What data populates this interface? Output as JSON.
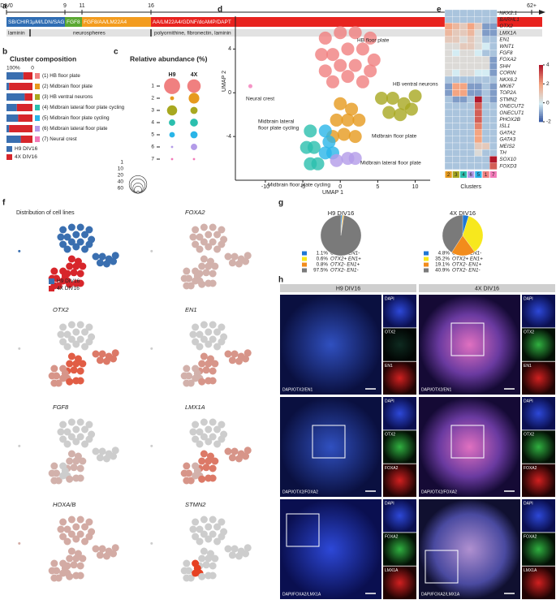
{
  "panel_letters": [
    "a",
    "b",
    "c",
    "d",
    "e",
    "f",
    "g",
    "h"
  ],
  "timeline": {
    "days": [
      "DIV0",
      "9",
      "11",
      "16",
      "62+"
    ],
    "media": [
      "SB/CHIR1μM/LDN/SAG",
      "FGF8",
      "FGF8/AA/LM22A4",
      "AA/LM22A4/GDNF/dcAMP/DAPT"
    ],
    "media_colors": [
      "#2f6db3",
      "#5aa832",
      "#f39c1f",
      "#e8231f"
    ],
    "substrates": [
      "laminin",
      "neurospheres",
      "polyornithine, fibronectin, laminin"
    ]
  },
  "composition": {
    "title": "Cluster composition",
    "axis_labels": [
      "100%",
      "0"
    ],
    "clusters": [
      "(1) HB floor plate",
      "(2) Midbrain floor plate",
      "(3) HB ventral neurons",
      "(4) Midbrain lateral floor plate cycling",
      "(5) Midbrain floor plate cycling",
      "(6) Midbrain lateral floor plate",
      "(7) Neural crest"
    ],
    "cluster_colors": [
      "#f08080",
      "#e69a1e",
      "#a8a820",
      "#2bbfae",
      "#29b5e8",
      "#b39be8",
      "#f27ab8"
    ],
    "series": [
      {
        "name": "H9 DIV16",
        "color": "#3a6fb0",
        "values": [
          65,
          10,
          70,
          40,
          45,
          10,
          55
        ]
      },
      {
        "name": "4X DIV16",
        "color": "#d7262b",
        "values": [
          35,
          90,
          30,
          60,
          55,
          90,
          45
        ]
      }
    ]
  },
  "abundance": {
    "title": "Relative abundance (%)",
    "columns": [
      "H9",
      "4X"
    ],
    "rows": [
      "1",
      "2",
      "3",
      "4",
      "5",
      "6",
      "7"
    ],
    "values": [
      [
        50,
        35
      ],
      [
        3,
        22
      ],
      [
        20,
        10
      ],
      [
        8,
        12
      ],
      [
        6,
        10
      ],
      [
        1,
        8
      ],
      [
        1,
        1
      ]
    ],
    "size_legend": [
      1,
      10,
      20,
      40,
      60
    ]
  },
  "umap": {
    "xlabel": "UMAP 1",
    "ylabel": "UMAP 2",
    "xlim": [
      -14,
      12
    ],
    "ylim": [
      -8,
      7
    ],
    "xticks": [
      -10,
      -5,
      0,
      5,
      10
    ],
    "yticks": [
      -4,
      0,
      4
    ],
    "labels": [
      "HB floor plate",
      "HB ventral neurons",
      "Neural crest",
      "Midbrain lateral",
      "floor plate cycling",
      "Midbrain floor plate",
      "Midbrain lateral floor plate",
      "Midbrain floor plate cycling"
    ],
    "clusters": [
      {
        "points": [
          [
            -2,
            5
          ],
          [
            0,
            5.5
          ],
          [
            2,
            5.5
          ],
          [
            4,
            5
          ],
          [
            -2.5,
            3.5
          ],
          [
            -1,
            3.5
          ],
          [
            1,
            4
          ],
          [
            3,
            4
          ],
          [
            4.5,
            3
          ],
          [
            -2,
            2
          ],
          [
            0,
            2.5
          ],
          [
            2,
            2.5
          ],
          [
            4,
            2
          ],
          [
            -1,
            1
          ],
          [
            1,
            1.5
          ],
          [
            3,
            1
          ]
        ]
      },
      {
        "points": [
          [
            0,
            -1
          ],
          [
            1.5,
            -1.5
          ],
          [
            -0.5,
            -2.5
          ],
          [
            1,
            -2.5
          ],
          [
            2.5,
            -2.5
          ],
          [
            -1,
            -4
          ],
          [
            0.5,
            -3.8
          ],
          [
            2,
            -4
          ]
        ]
      },
      {
        "points": [
          [
            5.5,
            -0.5
          ],
          [
            7,
            -0.5
          ],
          [
            8.5,
            -1
          ],
          [
            10,
            -0.3
          ],
          [
            6.5,
            -1.8
          ],
          [
            8,
            -2
          ],
          [
            9.5,
            -1.5
          ]
        ]
      },
      {
        "points": [
          [
            -4,
            -3.5
          ],
          [
            -4.5,
            -5
          ],
          [
            -3.5,
            -5
          ],
          [
            -4,
            -6.5
          ],
          [
            -3,
            -6.5
          ]
        ]
      },
      {
        "points": [
          [
            -2,
            -3.5
          ],
          [
            -1.5,
            -4.5
          ],
          [
            -1,
            -5.5
          ],
          [
            -2,
            -5.5
          ]
        ]
      },
      {
        "points": [
          [
            -0.5,
            -6.2
          ],
          [
            1,
            -6
          ],
          [
            2,
            -6
          ]
        ]
      },
      {
        "points": [
          [
            -12,
            0.6
          ]
        ]
      }
    ]
  },
  "heatmap": {
    "genes": [
      "NKX2.1",
      "BARHL1",
      "OTX2",
      "LMX1A",
      "EN1",
      "WNT1",
      "FGF8",
      "FOXA2",
      "SHH",
      "CORIN",
      "NKX6.2",
      "MKI67",
      "TOP2A",
      "STMN2",
      "ONECUT2",
      "ONECUT1",
      "PHOX2B",
      "ISL1",
      "GATA2",
      "GATA3",
      "MEIS2",
      "TH",
      "SOX10",
      "FOXD3"
    ],
    "columns": [
      "2",
      "3",
      "4",
      "6",
      "5",
      "1",
      "7"
    ],
    "xlabel": "Clusters",
    "colorbar_ticks": [
      4,
      2,
      0,
      -2
    ],
    "values": [
      [
        -0.5,
        -0.5,
        -0.5,
        -0.5,
        -0.5,
        -0.5,
        -0.5
      ],
      [
        -0.5,
        -0.5,
        -0.5,
        -0.5,
        -0.5,
        -0.5,
        -0.5
      ],
      [
        2,
        1.5,
        1,
        2,
        1,
        -1,
        -1
      ],
      [
        1.5,
        1,
        1,
        1.5,
        0.5,
        -1,
        -1
      ],
      [
        1,
        1,
        0.5,
        1,
        0.5,
        -0.5,
        -0.5
      ],
      [
        0.5,
        0.5,
        1,
        1,
        0.5,
        0,
        -0.5
      ],
      [
        0.5,
        0,
        0.5,
        0.5,
        0,
        -0.5,
        -0.5
      ],
      [
        0.5,
        0.5,
        0.5,
        0.5,
        0.5,
        0.5,
        -1
      ],
      [
        0.5,
        0.5,
        0.5,
        0.5,
        0.5,
        0.5,
        -1
      ],
      [
        0.5,
        0,
        0.5,
        0.5,
        0,
        0,
        -1
      ],
      [
        -0.5,
        -0.5,
        -0.5,
        -0.5,
        -0.5,
        -0.5,
        -0.5
      ],
      [
        -1,
        2,
        2,
        -1,
        -1,
        -0.5,
        -1
      ],
      [
        -1,
        2,
        2,
        -1,
        -1,
        -0.5,
        -1
      ],
      [
        -0.5,
        -1,
        -1,
        -0.5,
        4,
        -0.5,
        -1
      ],
      [
        -0.5,
        -0.5,
        -0.5,
        -0.5,
        3,
        -0.5,
        -0.5
      ],
      [
        -0.5,
        -0.5,
        -0.5,
        -0.5,
        3,
        -0.5,
        -0.5
      ],
      [
        -0.5,
        -0.5,
        -0.5,
        -0.5,
        3,
        -0.5,
        -0.5
      ],
      [
        -0.5,
        -0.5,
        -0.5,
        -0.5,
        2.5,
        -0.5,
        -0.5
      ],
      [
        -0.5,
        -0.5,
        -0.5,
        -0.5,
        2,
        -0.5,
        -0.5
      ],
      [
        -0.5,
        -0.5,
        -0.5,
        -0.5,
        2,
        -0.5,
        -0.5
      ],
      [
        -0.5,
        -0.5,
        -0.5,
        -0.5,
        1,
        1,
        -0.5
      ],
      [
        -0.5,
        -0.5,
        -0.5,
        -0.5,
        0.5,
        -0.5,
        -0.5
      ],
      [
        -0.5,
        -0.5,
        -0.5,
        -0.5,
        -0.5,
        -0.5,
        4
      ],
      [
        -0.5,
        -0.5,
        -0.5,
        -0.5,
        -0.5,
        -0.5,
        3
      ]
    ]
  },
  "cell_line_plot": {
    "title": "Distribution of cell lines"
  },
  "feature_plots": [
    "FOXA2",
    "OTX2",
    "EN1",
    "FGF8",
    "LMX1A",
    "HOXA/B",
    "STMN2"
  ],
  "pies": [
    {
      "title": "H9 DIV16",
      "values": [
        1.1,
        0.6,
        0.8,
        97.5
      ],
      "value_labels": [
        "1.1%",
        "0.6%",
        "0.8%",
        "97.5%"
      ]
    },
    {
      "title": "4X DIV16",
      "values": [
        4.8,
        35.2,
        19.1,
        40.9
      ],
      "value_labels": [
        "4.8%",
        "35.2%",
        "19.1%",
        "40.9%"
      ]
    }
  ],
  "pie_categories": [
    "OTX2+ EN1-",
    "OTX2+ EN1+",
    "OTX2- EN1+",
    "OTX2- EN1-"
  ],
  "pie_colors": [
    "#1f77d4",
    "#f7e81d",
    "#f28c1c",
    "#7a7a7a"
  ],
  "microscopy": {
    "columns": [
      "H9 DIV16",
      "4X DIV16"
    ],
    "rows": [
      {
        "merge": "DAPI/OTX2/EN1",
        "channels": [
          "DAPI",
          "OTX2",
          "EN1"
        ]
      },
      {
        "merge": "DAPI/OTX2/FOXA2",
        "channels": [
          "DAPI",
          "OTX2",
          "FOXA2"
        ]
      },
      {
        "merge": "DAPI/FOXA2/LMX1A",
        "channels": [
          "DAPI",
          "FOXA2",
          "LMX1A"
        ]
      }
    ]
  }
}
